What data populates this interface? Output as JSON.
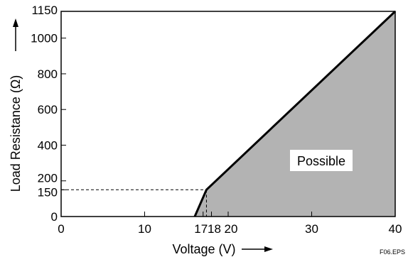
{
  "chart_data": {
    "type": "area",
    "xlabel": "Voltage (V)",
    "ylabel": "Load Resistance (Ω)",
    "xlim": [
      0,
      40
    ],
    "ylim": [
      0,
      1150
    ],
    "x_ticks": [
      0,
      10,
      17,
      18,
      20,
      30,
      40
    ],
    "x_tick_labels": [
      "0",
      "10",
      "17",
      "18",
      "20",
      "30",
      "40"
    ],
    "y_ticks": [
      0,
      150,
      200,
      400,
      600,
      800,
      1000,
      1150
    ],
    "y_tick_labels": [
      "0",
      "150",
      "200",
      "400",
      "600",
      "800",
      "1000",
      "1150"
    ],
    "grid": false,
    "boundary": {
      "x": [
        16.0,
        17.4,
        40
      ],
      "y": [
        0,
        150,
        1150
      ]
    },
    "reference_point": {
      "x": 17.4,
      "y": 150
    },
    "region_label": "Possible",
    "region_color": "#b3b3b3",
    "footnote": "F06.EPS"
  }
}
